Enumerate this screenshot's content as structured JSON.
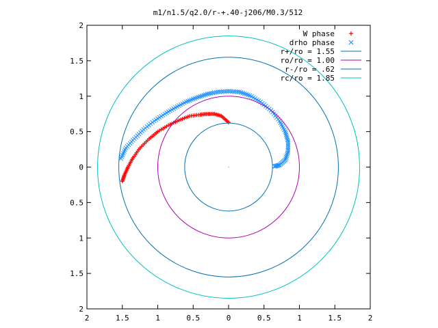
{
  "chart_data": {
    "type": "scatter",
    "title": "m1/n1.5/q2.0/r-+.40-j206/M0.3/512",
    "xlabel": "",
    "ylabel": "",
    "xlim": [
      -2,
      2
    ],
    "ylim": [
      -2,
      2
    ],
    "grid": false,
    "legend_position": "top-right",
    "x_ticks": [
      "2",
      "1.5",
      "1",
      "0.5",
      "0",
      "0.5",
      "1",
      "1.5",
      "2"
    ],
    "y_ticks": [
      "2",
      "1.5",
      "1",
      "0.5",
      "0",
      "0.5",
      "1",
      "1.5",
      "2"
    ],
    "x_tick_values": [
      -2,
      -1.5,
      -1,
      -0.5,
      0,
      0.5,
      1,
      1.5,
      2
    ],
    "y_tick_values": [
      2,
      1.5,
      1,
      0.5,
      0,
      -0.5,
      -1,
      -1.5,
      -2
    ],
    "series": [
      {
        "name": "W phase",
        "kind": "points",
        "marker": "+",
        "color": "#ff0000",
        "x": [
          0.0,
          -0.1,
          -0.2,
          -0.3,
          -0.4,
          -0.55,
          -0.7,
          -0.85,
          -1.0,
          -1.12,
          -1.25,
          -1.35,
          -1.42,
          -1.47,
          -1.5
        ],
        "y": [
          0.63,
          0.72,
          0.75,
          0.75,
          0.74,
          0.72,
          0.66,
          0.59,
          0.5,
          0.4,
          0.27,
          0.13,
          0.0,
          -0.11,
          -0.2
        ]
      },
      {
        "name": "drho phase",
        "kind": "points",
        "marker": "x",
        "color": "#1e90ff",
        "x": [
          0.65,
          0.72,
          0.8,
          0.84,
          0.84,
          0.8,
          0.72,
          0.6,
          0.45,
          0.3,
          0.15,
          0.0,
          -0.15,
          -0.3,
          -0.45,
          -0.6,
          -0.75,
          -0.9,
          -1.05,
          -1.2,
          -1.33,
          -1.45,
          -1.52
        ],
        "y": [
          0.01,
          0.03,
          0.1,
          0.22,
          0.36,
          0.5,
          0.65,
          0.8,
          0.92,
          1.01,
          1.06,
          1.07,
          1.06,
          1.03,
          0.98,
          0.92,
          0.84,
          0.75,
          0.65,
          0.53,
          0.4,
          0.27,
          0.12
        ]
      },
      {
        "name": "r+/ro = 1.55",
        "kind": "circle",
        "radius": 1.55,
        "color": "#0072b2"
      },
      {
        "name": "ro/ro = 1.00",
        "kind": "circle",
        "radius": 1.0,
        "color": "#b000b0"
      },
      {
        "name": "r-/ro = .62",
        "kind": "circle",
        "radius": 0.62,
        "color": "#0072b2"
      },
      {
        "name": "rc/ro = 1.85",
        "kind": "circle",
        "radius": 1.85,
        "color": "#00c0c0"
      }
    ]
  }
}
